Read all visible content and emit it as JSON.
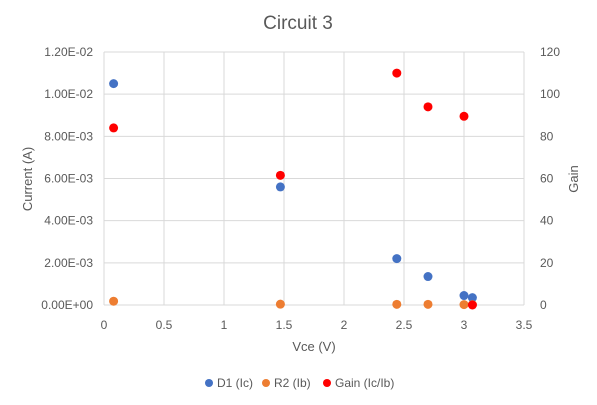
{
  "chart_data": {
    "type": "scatter",
    "title": "Circuit 3",
    "xlabel": "Vce (V)",
    "ylabel": "Current (A)",
    "y2label": "Gain",
    "xlim": [
      0,
      3.5
    ],
    "ylim": [
      0,
      0.012
    ],
    "y2lim": [
      0,
      120
    ],
    "x_ticks": [
      "0",
      "0.5",
      "1",
      "1.5",
      "2",
      "2.5",
      "3",
      "3.5"
    ],
    "y_ticks": [
      "0.00E+00",
      "2.00E-03",
      "4.00E-03",
      "6.00E-03",
      "8.00E-03",
      "1.00E-02",
      "1.20E-02"
    ],
    "y2_ticks": [
      "0",
      "20",
      "40",
      "60",
      "80",
      "100",
      "120"
    ],
    "grid": true,
    "legend_position": "bottom",
    "series": [
      {
        "name": "D1 (Ic)",
        "color": "#4472c4",
        "axis": "left",
        "points": [
          [
            0.08,
            0.0105
          ],
          [
            1.47,
            0.0056
          ],
          [
            2.44,
            0.0022
          ],
          [
            2.7,
            0.00135
          ],
          [
            3.0,
            0.00045
          ],
          [
            3.07,
            0.00035
          ]
        ]
      },
      {
        "name": "R2 (Ib)",
        "color": "#ed7d31",
        "axis": "left",
        "points": [
          [
            0.08,
            0.00018
          ],
          [
            1.47,
            4e-05
          ],
          [
            2.44,
            3e-05
          ],
          [
            2.7,
            3e-05
          ],
          [
            3.0,
            2e-05
          ],
          [
            3.07,
            2e-05
          ]
        ]
      },
      {
        "name": "Gain (Ic/Ib)",
        "color": "#ff0000",
        "axis": "right",
        "points": [
          [
            0.08,
            84
          ],
          [
            1.47,
            61.5
          ],
          [
            2.44,
            110
          ],
          [
            2.7,
            94
          ],
          [
            3.0,
            89.5
          ],
          [
            3.07,
            0
          ]
        ]
      }
    ]
  }
}
